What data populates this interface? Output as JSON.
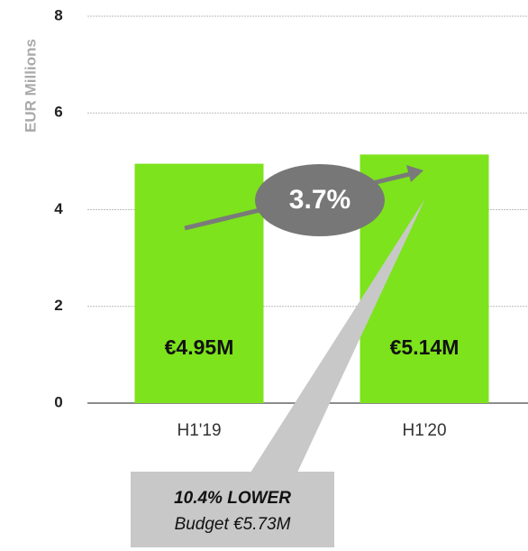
{
  "chart_data": {
    "type": "bar",
    "y_label": "EUR Millions",
    "categories": [
      "H1'19",
      "H1'20"
    ],
    "values": [
      4.95,
      5.14
    ],
    "value_labels": [
      "€4.95M",
      "€5.14M"
    ],
    "color": "#7de31c",
    "ylim": [
      0,
      8
    ],
    "yticks": [
      0,
      2,
      4,
      6,
      8
    ],
    "grid": true,
    "annotations": {
      "growth": "3.7%",
      "budget_title": "10.4% LOWER",
      "budget_text": "Budget €5.73M"
    }
  }
}
